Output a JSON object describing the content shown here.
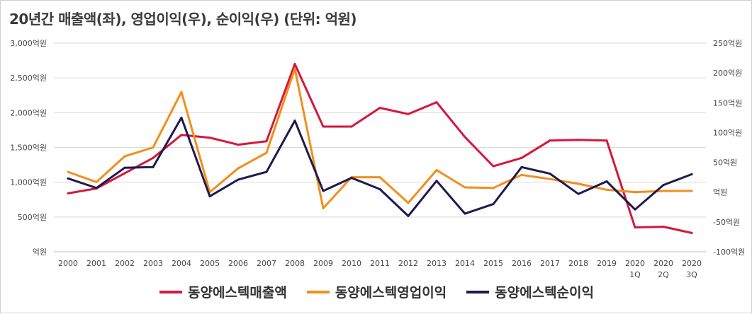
{
  "chart_data": {
    "type": "line",
    "title": "20년간 매출액(좌), 영업이익(우), 순이익(우) (단위: 억원)",
    "categories": [
      [
        "2000"
      ],
      [
        "2001"
      ],
      [
        "2002"
      ],
      [
        "2003"
      ],
      [
        "2004"
      ],
      [
        "2005"
      ],
      [
        "2006"
      ],
      [
        "2007"
      ],
      [
        "2008"
      ],
      [
        "2009"
      ],
      [
        "2010"
      ],
      [
        "2011"
      ],
      [
        "2012"
      ],
      [
        "2013"
      ],
      [
        "2014"
      ],
      [
        "2015"
      ],
      [
        "2016"
      ],
      [
        "2017"
      ],
      [
        "2018"
      ],
      [
        "2019"
      ],
      [
        "2020",
        "1Q"
      ],
      [
        "2020",
        "2Q"
      ],
      [
        "2020",
        "3Q"
      ]
    ],
    "left_axis": {
      "ylim": [
        0,
        3000
      ],
      "ticks": [
        {
          "value": 0,
          "label": "억원"
        },
        {
          "value": 500,
          "label": "500억원"
        },
        {
          "value": 1000,
          "label": "1,000억원"
        },
        {
          "value": 1500,
          "label": "1,500억원"
        },
        {
          "value": 2000,
          "label": "2,000억원"
        },
        {
          "value": 2500,
          "label": "2,500억원"
        },
        {
          "value": 3000,
          "label": "3,000억원"
        }
      ]
    },
    "right_axis": {
      "ylim": [
        -100,
        250
      ],
      "ticks": [
        {
          "value": -100,
          "label": "-100억원"
        },
        {
          "value": -50,
          "label": "-50억원"
        },
        {
          "value": 0,
          "label": "억원"
        },
        {
          "value": 50,
          "label": "50억원"
        },
        {
          "value": 100,
          "label": "100억원"
        },
        {
          "value": 150,
          "label": "150억원"
        },
        {
          "value": 200,
          "label": "200억원"
        },
        {
          "value": 250,
          "label": "250억원"
        }
      ]
    },
    "grid": true,
    "legend_position": "bottom",
    "series": [
      {
        "name": "동양에스텍매출액",
        "axis": "left",
        "color": "#d6173c",
        "values": [
          840,
          910,
          1130,
          1350,
          1680,
          1640,
          1540,
          1590,
          2700,
          1800,
          1800,
          2070,
          1980,
          2150,
          1650,
          1230,
          1350,
          1600,
          1610,
          1600,
          350,
          360,
          270
        ]
      },
      {
        "name": "동양에스텍영업이익",
        "axis": "right",
        "color": "#f28e1c",
        "values": [
          34,
          17,
          60,
          75,
          168,
          0,
          40,
          66,
          207,
          -27,
          25,
          25,
          -18,
          37,
          8,
          7,
          29,
          22,
          14,
          4,
          0,
          2,
          2
        ]
      },
      {
        "name": "동양에스텍순이익",
        "axis": "right",
        "color": "#1f1a4e",
        "values": [
          23,
          7,
          41,
          42,
          125,
          -7,
          21,
          34,
          120,
          2,
          24,
          5,
          -40,
          19,
          -36,
          -20,
          42,
          31,
          -3,
          18,
          -29,
          12,
          30
        ]
      }
    ]
  }
}
